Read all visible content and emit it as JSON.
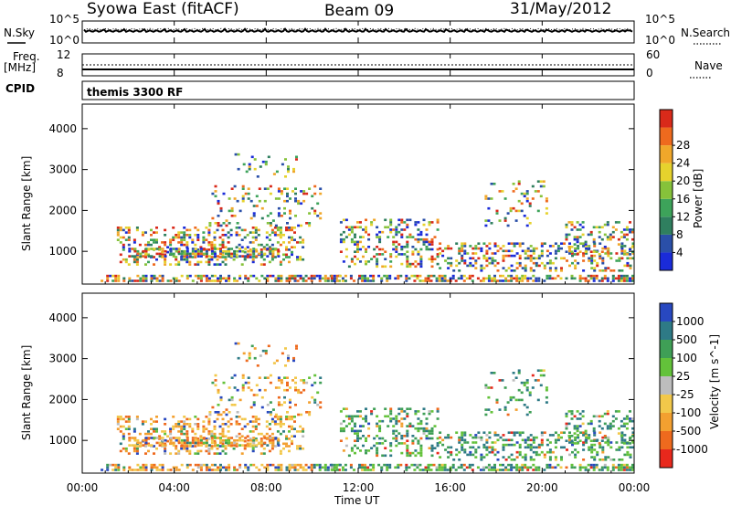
{
  "header": {
    "station": "Syowa East (fitACF)",
    "beam": "Beam 09",
    "date": "31/May/2012"
  },
  "status_panels": {
    "nsky_label": "N.Sky",
    "nsky_scale_top": "10^5",
    "nsky_scale_bottom": "10^0",
    "nsearch_label": "N.Search",
    "nsearch_scale_top": "10^5",
    "nsearch_scale_bottom": "10^0",
    "freq_label": "Freq.",
    "freq_unit": "[MHz]",
    "freq_scale_top": "12",
    "freq_scale_bottom": "8",
    "nave_label": "Nave",
    "nave_scale_top": "60",
    "nave_scale_bottom": "0",
    "cpid_label": "CPID",
    "cpid_value": "themis 3300 RF"
  },
  "x_axis": {
    "label": "Time UT",
    "ticks": [
      "00:00",
      "04:00",
      "08:00",
      "12:00",
      "16:00",
      "20:00",
      "00:00"
    ]
  },
  "colors": {
    "power_scale": [
      "#1a2bd9",
      "#2a4fa8",
      "#2f7f5f",
      "#3da35a",
      "#86c23a",
      "#e6d22d",
      "#f0a72a",
      "#ee6a1e",
      "#d92a1a"
    ],
    "velocity_scale": [
      "#e8281c",
      "#ee6a1e",
      "#f3a030",
      "#f2c84a",
      "#bdbdbd",
      "#63c23a",
      "#3f9f56",
      "#2e7a86",
      "#2848c0"
    ]
  },
  "chart_data": [
    {
      "type": "heatmap",
      "name": "power",
      "title": "",
      "xlabel": "",
      "ylabel": "Slant Range [km]",
      "xlim_hours": [
        0,
        24
      ],
      "ylim": [
        200,
        4600
      ],
      "yticks": [
        "1000",
        "2000",
        "3000",
        "4000"
      ],
      "colorbar": {
        "label": "Power [dB]",
        "range": [
          0,
          32
        ],
        "ticks": [
          "4",
          "8",
          "12",
          "16",
          "20",
          "24",
          "28"
        ]
      }
    },
    {
      "type": "heatmap",
      "name": "velocity",
      "title": "",
      "xlabel": "Time UT",
      "ylabel": "Slant Range [km]",
      "xlim_hours": [
        0,
        24
      ],
      "ylim": [
        200,
        4600
      ],
      "yticks": [
        "1000",
        "2000",
        "3000",
        "4000"
      ],
      "colorbar": {
        "label": "Velocity [m s^-1]",
        "ticks": [
          "1000",
          "500",
          "100",
          "25",
          "-25",
          "-100",
          "-500",
          "-1000"
        ]
      }
    }
  ]
}
